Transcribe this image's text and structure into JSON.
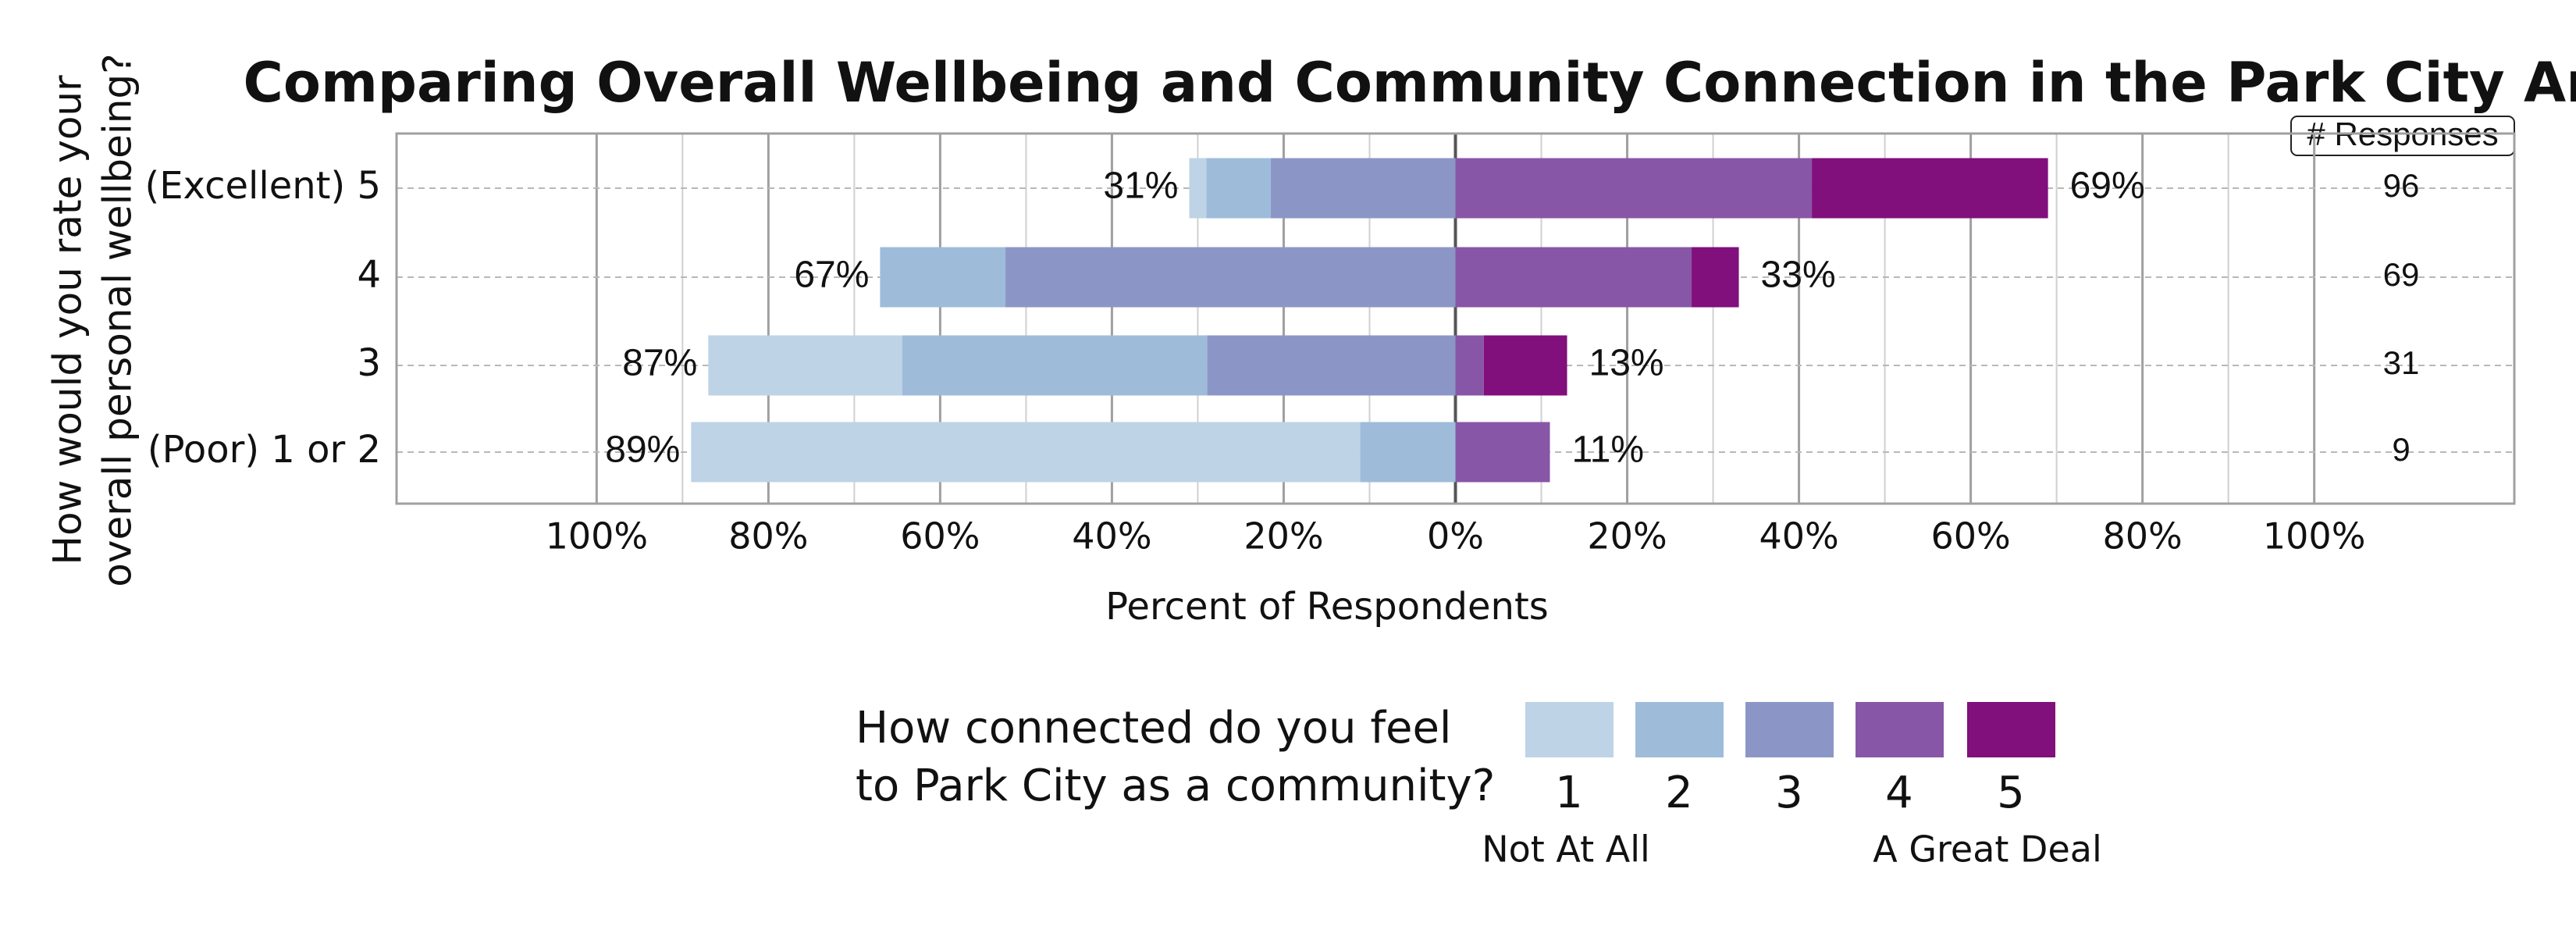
{
  "chart_data": {
    "type": "diverging_bar",
    "title": "Comparing Overall Wellbeing and Community Connection in the Park City Area",
    "y_label": [
      "How would you rate your",
      "overall personal wellbeing?"
    ],
    "x_label": "Percent of Respondents",
    "categories": [
      "(Excellent) 5",
      "4",
      "3",
      "(Poor) 1 or 2"
    ],
    "series": [
      {
        "name": "1",
        "color": "#bfd3e6",
        "values": [
          -2,
          0,
          -22.6,
          -77.9
        ]
      },
      {
        "name": "2",
        "color": "#9ebcda",
        "values": [
          -7.5,
          -14.6,
          -35.5,
          -11.1
        ]
      },
      {
        "name": "3",
        "color": "#8c96c6",
        "values": [
          -21.5,
          -52.4,
          -28.9,
          0
        ]
      },
      {
        "name": "4",
        "color": "#8856a7",
        "values": [
          41.5,
          27.5,
          3.3,
          11
        ]
      },
      {
        "name": "5",
        "color": "#810f7c",
        "values": [
          27.5,
          5.5,
          9.7,
          0
        ]
      }
    ],
    "totals_left": {
      "values": [
        -31,
        -67,
        -87,
        -89
      ],
      "value_labels": [
        "31%",
        "67%",
        "87%",
        "89%"
      ]
    },
    "totals_right": {
      "values": [
        69,
        33,
        13,
        11
      ],
      "value_labels": [
        "69%",
        "33%",
        "13%",
        "11%"
      ]
    },
    "responses": {
      "title": "# Responses",
      "values": [
        96,
        69,
        31,
        9
      ]
    },
    "xlim": [
      -123.3,
      123.3
    ],
    "xticks": [
      {
        "value": -100,
        "label": "100%"
      },
      {
        "value": -80,
        "label": "80%"
      },
      {
        "value": -60,
        "label": "60%"
      },
      {
        "value": -40,
        "label": "40%"
      },
      {
        "value": -20,
        "label": "20%"
      },
      {
        "value": 0,
        "label": "0%"
      },
      {
        "value": 20,
        "label": "20%"
      },
      {
        "value": 40,
        "label": "40%"
      },
      {
        "value": 60,
        "label": "60%"
      },
      {
        "value": 80,
        "label": "80%"
      },
      {
        "value": 100,
        "label": "100%"
      }
    ],
    "xminor_ticks": [
      -90,
      -70,
      -50,
      -30,
      -10,
      10,
      30,
      50,
      70,
      90
    ],
    "grid": true,
    "legend_title": [
      "How connected do you feel",
      "to Park City as a community?"
    ],
    "legend_low": "Not At All",
    "legend_high": "A Great Deal"
  }
}
